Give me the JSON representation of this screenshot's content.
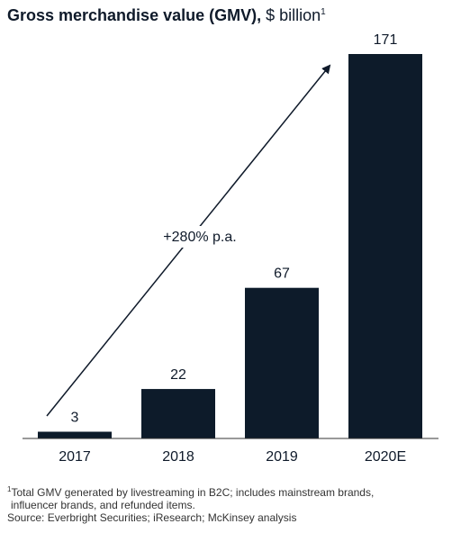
{
  "title": {
    "bold": "Gross merchandise value (GMV),",
    "unit": " $ billion",
    "footnote_mark": "1"
  },
  "chart_data": {
    "type": "bar",
    "categories": [
      "2017",
      "2018",
      "2019",
      "2020E"
    ],
    "values": [
      3,
      22,
      67,
      171
    ],
    "title": "Gross merchandise value (GMV), $ billion",
    "xlabel": "",
    "ylabel": "",
    "ylim": [
      0,
      171
    ],
    "grid": false,
    "colors": {
      "bar": "#0d1b2a",
      "text": "#0f1a2a"
    },
    "annotation": {
      "text": "+280% p.a.",
      "type": "arrow",
      "from": "2017",
      "to": "2020E"
    }
  },
  "footnotes": {
    "mark": "1",
    "line1": "Total GMV generated by livestreaming in B2C; includes mainstream brands,",
    "line2": "influencer brands, and refunded items.",
    "source": "Source: Everbright Securities; iResearch; McKinsey analysis"
  }
}
